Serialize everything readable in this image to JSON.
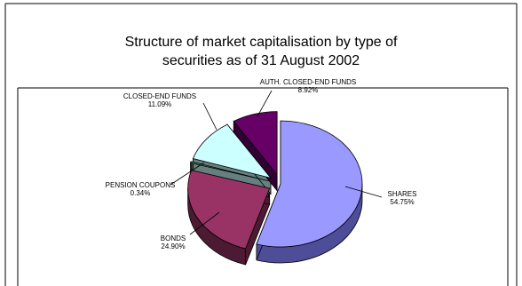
{
  "chart_data": {
    "type": "pie",
    "title_lines": [
      "Structure of market capitalisation by type of",
      "securities as of 31 August 2002"
    ],
    "slices": [
      {
        "name": "SHARES",
        "value_label": "54.75%",
        "value": 54.75,
        "color": "#9999ff",
        "side_color": "#4d4d99",
        "exploded": false
      },
      {
        "name": "BONDS",
        "value_label": "24.90%",
        "value": 24.9,
        "color": "#993366",
        "side_color": "#4d1a33",
        "exploded": true
      },
      {
        "name": "PENSION COUPONS",
        "value_label": "0.34%",
        "value": 0.34,
        "color": "#669966",
        "side_color": "#334d33",
        "exploded": true
      },
      {
        "name": "CLOSED-END FUNDS",
        "value_label": "11.09%",
        "value": 11.09,
        "color": "#ccffff",
        "side_color": "#668080",
        "exploded": true
      },
      {
        "name": "AUTH. CLOSED-END FUNDS",
        "value_label": "8.92%",
        "value": 8.92,
        "color": "#660066",
        "side_color": "#330033",
        "exploded": true
      }
    ],
    "legend": "none",
    "style": "3d-exploded"
  }
}
